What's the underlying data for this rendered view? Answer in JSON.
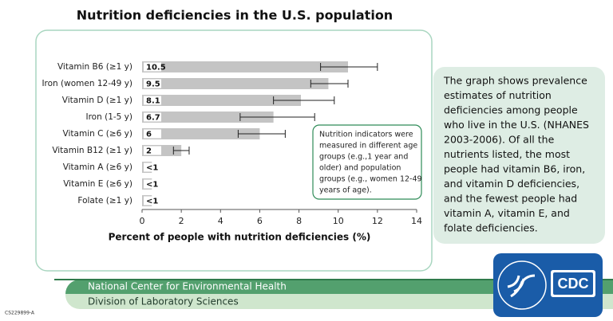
{
  "chart_data": {
    "type": "bar",
    "orientation": "horizontal",
    "title": "Nutrition deficiencies in the U.S. population",
    "x_label": "Percent of people with nutrition deficiencies (%)",
    "categories": [
      "Vitamin B6 (≥1 y)",
      "Iron (women 12-49 y)",
      "Vitamin D (≥1 y)",
      "Iron (1-5 y)",
      "Vitamin C (≥6 y)",
      "Vitamin B12 (≥1 y)",
      "Vitamin A (≥6 y)",
      "Vitamin E (≥6 y)",
      "Folate (≥1 y)"
    ],
    "values": [
      10.5,
      9.5,
      8.1,
      6.7,
      6,
      2,
      0.5,
      0.5,
      0.5
    ],
    "value_labels": [
      "10.5",
      "9.5",
      "8.1",
      "6.7",
      "6",
      "2",
      "<1",
      "<1",
      "<1"
    ],
    "ci_low": [
      9.1,
      8.6,
      6.7,
      5.0,
      4.9,
      1.6,
      null,
      null,
      null
    ],
    "ci_high": [
      12.0,
      10.5,
      9.8,
      8.8,
      7.3,
      2.4,
      null,
      null,
      null
    ],
    "color": "#c4c4c4",
    "xlim": [
      0,
      14
    ],
    "xticks": [
      0,
      2,
      4,
      6,
      8,
      10,
      12,
      14
    ],
    "annotation": [
      "Nutrition indicators were",
      "measured in different age",
      "groups (e.g.,1 year and",
      "older) and population",
      "groups (e.g., women 12-49",
      "years of age)."
    ]
  },
  "side_text": [
    "The graph shows prevalence",
    "estimates of nutrition",
    "deficiencies among people",
    "who live in the U.S. (NHANES",
    "2003-2006). Of all the",
    "nutrients listed, the most",
    "people had vitamin B6, iron,",
    "and vitamin D deficiencies,",
    "and the fewest people had",
    "vitamin A, vitamin E, and",
    "folate deficiencies."
  ],
  "footer": {
    "center": "National Center for Environmental Health",
    "division": "Division of Laboratory Sciences",
    "code": "CS229899-A",
    "logo": "CDC"
  }
}
